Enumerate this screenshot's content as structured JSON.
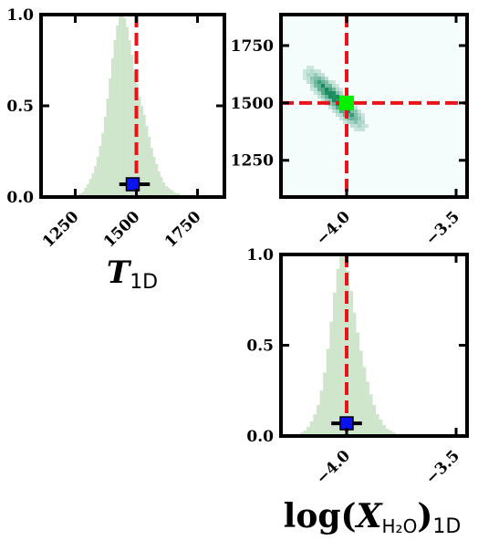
{
  "colors": {
    "hist_fill": "#cfe5cc",
    "truth_line": "#e8141a",
    "marker_blue": "#0a14f0",
    "marker_green": "#00f000",
    "heat_low": "#f4fcfc",
    "heat_high": "#1a8a60",
    "frame": "#000000"
  },
  "labels": {
    "x_T1D_main": "T",
    "x_T1D_sub": "1D",
    "x_logX_log": "log(",
    "x_logX_X": "X",
    "x_logX_H2O": "H₂O",
    "x_logX_close": ")",
    "x_logX_sub": "1D"
  },
  "chart_data": [
    {
      "type": "bar",
      "panel": "marginal-T1D",
      "xlim": [
        1110,
        1860
      ],
      "ylim": [
        0,
        1.0
      ],
      "xticks": [
        1250,
        1500,
        1750
      ],
      "xtick_labels": [
        "1250",
        "1500",
        "1750"
      ],
      "yticks": [
        0.0,
        0.5,
        1.0
      ],
      "ytick_labels": [
        "0.0",
        "0.5",
        "1.0"
      ],
      "hist_x": [
        1262,
        1272,
        1282,
        1292,
        1302,
        1312,
        1322,
        1332,
        1342,
        1352,
        1362,
        1372,
        1382,
        1392,
        1402,
        1412,
        1422,
        1432,
        1442,
        1452,
        1462,
        1472,
        1482,
        1492,
        1502,
        1512,
        1522,
        1532,
        1542,
        1552,
        1562,
        1572,
        1582,
        1592,
        1602,
        1612,
        1622,
        1632,
        1642,
        1652,
        1662,
        1672,
        1682,
        1692
      ],
      "hist_y": [
        0.01,
        0.02,
        0.03,
        0.05,
        0.07,
        0.1,
        0.13,
        0.17,
        0.22,
        0.28,
        0.35,
        0.44,
        0.54,
        0.65,
        0.76,
        0.86,
        0.94,
        0.99,
        1.0,
        0.98,
        0.93,
        0.86,
        0.78,
        0.69,
        0.62,
        0.55,
        0.5,
        0.45,
        0.39,
        0.33,
        0.27,
        0.22,
        0.18,
        0.14,
        0.11,
        0.08,
        0.06,
        0.05,
        0.04,
        0.03,
        0.02,
        0.02,
        0.01,
        0.01
      ],
      "truth_x": 1500,
      "marker": {
        "x": 1485,
        "y": 0.07,
        "xerr_low": 1430,
        "xerr_high": 1555
      }
    },
    {
      "type": "heatmap",
      "panel": "joint-logX-T1D",
      "xlim": [
        -4.3,
        -3.45
      ],
      "ylim": [
        1090,
        1885
      ],
      "xticks": [
        -4.0,
        -3.5
      ],
      "xtick_labels": [
        "−4.0",
        "−3.5"
      ],
      "yticks": [
        1250,
        1500,
        1750
      ],
      "ytick_labels": [
        "1250",
        "1500",
        "1750"
      ],
      "truth_x": -4.0,
      "truth_y": 1500,
      "density_ridge": {
        "start": [
          -4.18,
          1640
        ],
        "end": [
          -3.92,
          1390
        ],
        "peak": [
          -4.04,
          1530
        ]
      },
      "marker": {
        "x": -4.0,
        "y": 1500
      }
    },
    {
      "type": "bar",
      "panel": "marginal-logX",
      "xlim": [
        -4.3,
        -3.45
      ],
      "ylim": [
        0,
        1.0
      ],
      "xticks": [
        -4.0,
        -3.5
      ],
      "xtick_labels": [
        "−4.0",
        "−3.5"
      ],
      "yticks": [
        0.0,
        0.5,
        1.0
      ],
      "ytick_labels": [
        "0.0",
        "0.5",
        "1.0"
      ],
      "hist_x": [
        -4.22,
        -4.205,
        -4.19,
        -4.175,
        -4.16,
        -4.145,
        -4.13,
        -4.115,
        -4.1,
        -4.085,
        -4.07,
        -4.055,
        -4.04,
        -4.025,
        -4.01,
        -3.995,
        -3.98,
        -3.965,
        -3.95,
        -3.935,
        -3.92,
        -3.905,
        -3.89,
        -3.875,
        -3.86,
        -3.845,
        -3.83,
        -3.815,
        -3.8,
        -3.785,
        -3.77,
        -3.755,
        -3.74
      ],
      "hist_y": [
        0.01,
        0.02,
        0.03,
        0.05,
        0.08,
        0.12,
        0.17,
        0.25,
        0.35,
        0.48,
        0.63,
        0.79,
        0.92,
        1.0,
        0.99,
        0.91,
        0.8,
        0.68,
        0.57,
        0.47,
        0.38,
        0.3,
        0.23,
        0.17,
        0.12,
        0.09,
        0.06,
        0.04,
        0.03,
        0.02,
        0.01,
        0.01,
        0.005
      ],
      "truth_x": -4.0,
      "marker": {
        "x": -4.0,
        "y": 0.07,
        "xerr_low": -4.07,
        "xerr_high": -3.93
      }
    }
  ]
}
